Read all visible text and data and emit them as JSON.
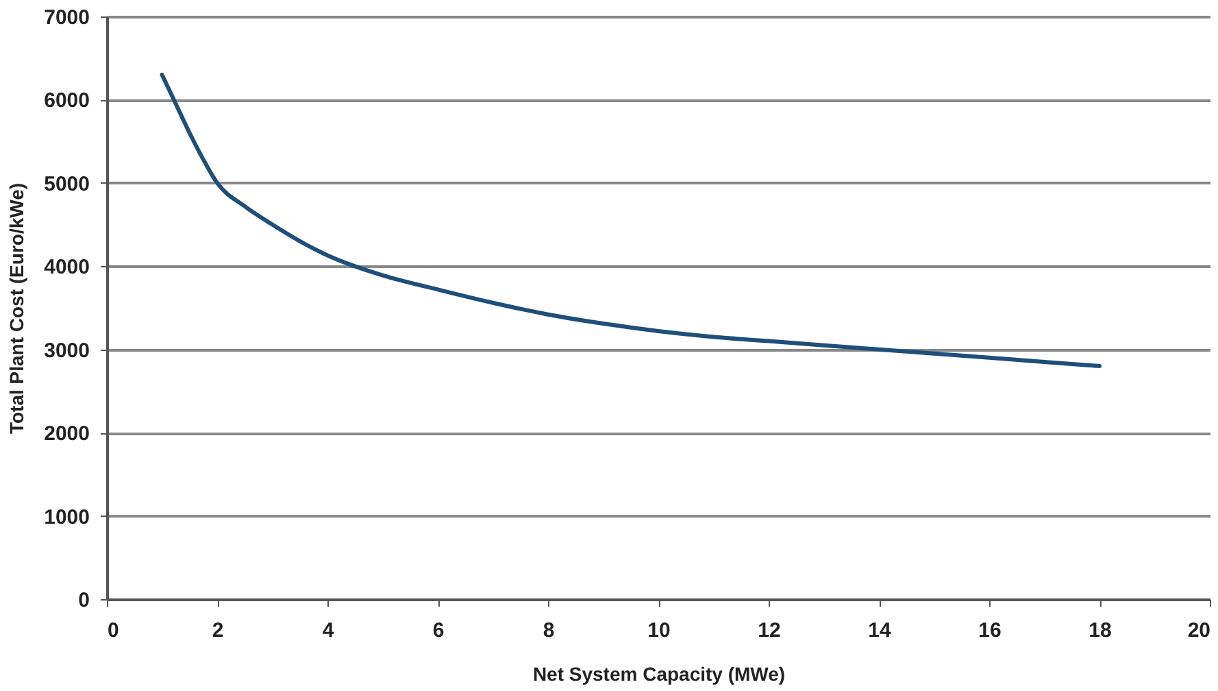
{
  "chart_data": {
    "type": "line",
    "xlabel": "Net System Capacity (MWe)",
    "ylabel": "Total Plant Cost (Euro/kWe)",
    "xlim": [
      0,
      20
    ],
    "xticks": [
      0,
      2,
      4,
      6,
      8,
      10,
      12,
      14,
      16,
      18,
      20
    ],
    "ylim": [
      0,
      7000
    ],
    "yticks": [
      0,
      1000,
      2000,
      3000,
      4000,
      5000,
      6000,
      7000
    ],
    "grid": "y",
    "marker": "none",
    "line_style": "solid",
    "series": [
      {
        "color": "#1f4e79",
        "x": [
          1,
          1.25,
          1.5,
          1.75,
          2,
          2.5,
          3,
          3.5,
          4,
          5,
          6,
          7,
          8,
          9,
          10,
          11,
          12,
          13,
          14,
          15,
          16,
          17,
          18
        ],
        "values": [
          6300,
          5950,
          5600,
          5280,
          5000,
          4720,
          4500,
          4300,
          4130,
          3890,
          3720,
          3560,
          3420,
          3310,
          3220,
          3150,
          3100,
          3050,
          3000,
          2950,
          2900,
          2850,
          2800
        ]
      }
    ]
  }
}
